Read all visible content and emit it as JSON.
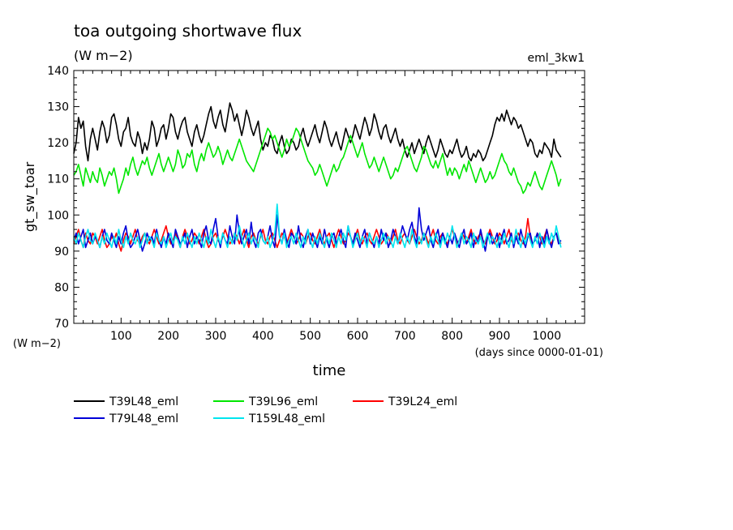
{
  "chart_data": {
    "type": "line",
    "title": "toa outgoing shortwave flux",
    "subtitle": "(W m−2)",
    "run_label": "eml_3kw1",
    "ylabel": "gt_sw_toar",
    "yunit": "(W m−2)",
    "xlabel": "time",
    "xunit": "(days since 0000-01-01)",
    "xlim": [
      0,
      1080
    ],
    "ylim": [
      70,
      140
    ],
    "xticks": [
      100,
      200,
      300,
      400,
      500,
      600,
      700,
      800,
      900,
      1000
    ],
    "yticks": [
      70,
      80,
      90,
      100,
      110,
      120,
      130,
      140
    ],
    "grid": false,
    "legend_placement": "bottom",
    "sample_step_days": 5,
    "series": [
      {
        "name": "T39L48_eml",
        "color": "#000000",
        "values": [
          117,
          120,
          127,
          124,
          126,
          119,
          115,
          121,
          124,
          121,
          118,
          123,
          126,
          124,
          120,
          122,
          127,
          128,
          125,
          121,
          119,
          123,
          124,
          127,
          122,
          120,
          119,
          123,
          121,
          117,
          120,
          118,
          121,
          126,
          124,
          119,
          121,
          124,
          125,
          121,
          124,
          128,
          127,
          123,
          121,
          124,
          126,
          127,
          123,
          121,
          119,
          123,
          125,
          122,
          120,
          122,
          125,
          128,
          130,
          126,
          124,
          127,
          129,
          125,
          123,
          127,
          131,
          129,
          126,
          128,
          125,
          122,
          125,
          129,
          127,
          124,
          122,
          124,
          126,
          121,
          118,
          120,
          119,
          122,
          121,
          118,
          117,
          120,
          122,
          119,
          117,
          118,
          121,
          120,
          118,
          119,
          122,
          124,
          121,
          119,
          121,
          123,
          125,
          122,
          120,
          123,
          126,
          124,
          121,
          119,
          121,
          123,
          120,
          118,
          121,
          124,
          122,
          120,
          122,
          125,
          123,
          121,
          124,
          127,
          125,
          122,
          124,
          128,
          126,
          123,
          121,
          124,
          125,
          122,
          120,
          122,
          124,
          121,
          119,
          121,
          118,
          116,
          118,
          120,
          117,
          119,
          121,
          119,
          117,
          120,
          122,
          120,
          118,
          116,
          118,
          121,
          119,
          117,
          116,
          118,
          117,
          119,
          121,
          118,
          116,
          117,
          119,
          116,
          115,
          117,
          116,
          118,
          117,
          115,
          116,
          118,
          120,
          122,
          125,
          127,
          126,
          128,
          126,
          129,
          127,
          125,
          127,
          126,
          124,
          125,
          123,
          121,
          119,
          121,
          120,
          117,
          116,
          118,
          117,
          120,
          119,
          118,
          116,
          121,
          118,
          117,
          116
        ]
      },
      {
        "name": "T39L96_eml",
        "color": "#00e600",
        "values": [
          111,
          112,
          114,
          111,
          108,
          113,
          111,
          109,
          112,
          110,
          109,
          113,
          111,
          108,
          110,
          112,
          111,
          113,
          110,
          106,
          108,
          110,
          113,
          111,
          114,
          116,
          113,
          111,
          113,
          115,
          114,
          116,
          113,
          111,
          113,
          115,
          117,
          114,
          112,
          114,
          116,
          114,
          112,
          114,
          118,
          116,
          113,
          114,
          117,
          116,
          118,
          114,
          112,
          115,
          117,
          115,
          118,
          120,
          118,
          116,
          117,
          119,
          117,
          114,
          116,
          118,
          116,
          115,
          117,
          119,
          121,
          119,
          117,
          115,
          114,
          113,
          112,
          114,
          116,
          118,
          120,
          122,
          124,
          123,
          121,
          122,
          120,
          118,
          116,
          118,
          121,
          119,
          120,
          122,
          124,
          123,
          121,
          119,
          117,
          115,
          114,
          113,
          111,
          112,
          114,
          112,
          110,
          108,
          110,
          112,
          114,
          112,
          113,
          115,
          116,
          118,
          120,
          122,
          120,
          118,
          116,
          118,
          120,
          117,
          115,
          113,
          114,
          116,
          114,
          112,
          114,
          116,
          114,
          112,
          110,
          111,
          113,
          112,
          114,
          116,
          118,
          119,
          117,
          115,
          113,
          112,
          114,
          116,
          119,
          118,
          116,
          114,
          113,
          115,
          113,
          115,
          117,
          114,
          111,
          113,
          111,
          113,
          112,
          110,
          112,
          114,
          112,
          115,
          113,
          111,
          109,
          111,
          113,
          111,
          109,
          110,
          112,
          110,
          111,
          113,
          115,
          117,
          115,
          114,
          112,
          111,
          113,
          111,
          109,
          108,
          106,
          107,
          109,
          108,
          110,
          112,
          110,
          108,
          107,
          109,
          111,
          113,
          115,
          113,
          111,
          108,
          110
        ]
      },
      {
        "name": "T39L24_eml",
        "color": "#ff0000",
        "values": [
          92,
          94,
          96,
          93,
          91,
          95,
          93,
          92,
          95,
          94,
          92,
          94,
          96,
          93,
          91,
          92,
          94,
          93,
          95,
          92,
          90,
          93,
          95,
          94,
          92,
          94,
          96,
          93,
          92,
          94,
          95,
          93,
          92,
          94,
          96,
          94,
          92,
          93,
          95,
          97,
          94,
          92,
          93,
          95,
          93,
          91,
          94,
          96,
          94,
          92,
          93,
          95,
          94,
          92,
          94,
          96,
          93,
          91,
          92,
          94,
          95,
          93,
          92,
          94,
          96,
          94,
          92,
          93,
          95,
          94,
          92,
          94,
          96,
          93,
          91,
          94,
          95,
          93,
          92,
          94,
          96,
          93,
          92,
          94,
          95,
          93,
          91,
          93,
          95,
          94,
          92,
          94,
          96,
          94,
          92,
          93,
          95,
          94,
          92,
          94,
          95,
          93,
          92,
          94,
          96,
          93,
          92,
          94,
          95,
          93,
          91,
          94,
          96,
          94,
          92,
          93,
          95,
          94,
          92,
          94,
          96,
          93,
          92,
          94,
          95,
          93,
          92,
          94,
          96,
          94,
          92,
          93,
          95,
          94,
          92,
          94,
          96,
          93,
          92,
          94,
          95,
          93,
          92,
          94,
          96,
          94,
          92,
          93,
          95,
          94,
          92,
          94,
          96,
          93,
          92,
          94,
          95,
          93,
          92,
          94,
          96,
          94,
          92,
          93,
          95,
          94,
          92,
          94,
          96,
          93,
          92,
          94,
          95,
          93,
          92,
          94,
          96,
          94,
          92,
          93,
          95,
          94,
          92,
          94,
          96,
          93,
          92,
          94,
          95,
          93,
          92,
          94,
          99,
          94,
          92,
          93,
          95,
          94,
          92,
          94,
          96,
          93,
          92,
          94,
          95,
          93,
          92
        ]
      },
      {
        "name": "T79L48_eml",
        "color": "#0000d8",
        "values": [
          93,
          95,
          92,
          94,
          96,
          91,
          93,
          95,
          92,
          94,
          93,
          91,
          94,
          96,
          93,
          92,
          95,
          93,
          91,
          94,
          92,
          95,
          97,
          93,
          91,
          92,
          94,
          96,
          93,
          90,
          92,
          95,
          93,
          94,
          92,
          96,
          93,
          91,
          94,
          92,
          95,
          93,
          91,
          96,
          94,
          92,
          93,
          95,
          91,
          94,
          96,
          92,
          94,
          93,
          91,
          95,
          97,
          93,
          92,
          96,
          99,
          94,
          91,
          95,
          93,
          92,
          97,
          94,
          92,
          100,
          95,
          92,
          94,
          96,
          92,
          98,
          93,
          91,
          95,
          96,
          93,
          92,
          94,
          97,
          93,
          91,
          100,
          94,
          92,
          96,
          93,
          91,
          95,
          94,
          92,
          97,
          93,
          91,
          94,
          96,
          92,
          95,
          93,
          91,
          94,
          92,
          96,
          93,
          91,
          94,
          95,
          92,
          94,
          96,
          93,
          91,
          97,
          94,
          92,
          95,
          93,
          91,
          94,
          96,
          92,
          95,
          93,
          91,
          94,
          92,
          96,
          93,
          95,
          91,
          93,
          96,
          94,
          92,
          94,
          97,
          95,
          93,
          96,
          98,
          94,
          92,
          102,
          96,
          93,
          95,
          97,
          93,
          91,
          94,
          96,
          92,
          95,
          93,
          91,
          94,
          92,
          95,
          93,
          91,
          94,
          96,
          92,
          93,
          95,
          91,
          94,
          92,
          96,
          93,
          90,
          94,
          95,
          92,
          93,
          95,
          91,
          94,
          96,
          92,
          93,
          95,
          91,
          94,
          92,
          96,
          93,
          91,
          94,
          95,
          92,
          93,
          95,
          91,
          94,
          92,
          96,
          93,
          91,
          94,
          95,
          92,
          93
        ]
      },
      {
        "name": "T159L48_eml",
        "color": "#00e5ee",
        "values": [
          94,
          92,
          95,
          93,
          91,
          94,
          96,
          93,
          92,
          95,
          93,
          91,
          94,
          92,
          95,
          93,
          91,
          94,
          92,
          96,
          93,
          91,
          94,
          92,
          95,
          93,
          92,
          94,
          91,
          93,
          95,
          92,
          94,
          93,
          91,
          95,
          93,
          92,
          94,
          91,
          93,
          95,
          92,
          94,
          93,
          91,
          94,
          92,
          95,
          93,
          91,
          94,
          92,
          95,
          93,
          91,
          94,
          92,
          96,
          93,
          91,
          94,
          92,
          95,
          93,
          91,
          94,
          92,
          95,
          93,
          97,
          94,
          91,
          93,
          95,
          92,
          94,
          93,
          91,
          95,
          93,
          92,
          94,
          91,
          93,
          95,
          103,
          94,
          92,
          95,
          91,
          93,
          94,
          92,
          95,
          93,
          91,
          94,
          92,
          96,
          93,
          91,
          94,
          92,
          95,
          93,
          91,
          94,
          92,
          95,
          93,
          91,
          94,
          92,
          95,
          93,
          97,
          94,
          91,
          93,
          95,
          92,
          94,
          93,
          91,
          95,
          93,
          92,
          94,
          91,
          93,
          95,
          92,
          94,
          93,
          91,
          94,
          92,
          95,
          93,
          91,
          94,
          92,
          96,
          93,
          91,
          94,
          92,
          95,
          93,
          91,
          94,
          92,
          95,
          93,
          91,
          94,
          92,
          95,
          93,
          97,
          94,
          91,
          93,
          95,
          92,
          94,
          93,
          91,
          95,
          93,
          92,
          94,
          91,
          93,
          95,
          92,
          94,
          93,
          91,
          94,
          92,
          95,
          93,
          91,
          94,
          92,
          96,
          93,
          91,
          94,
          92,
          95,
          93,
          91,
          94,
          92,
          95,
          93,
          91,
          94,
          92,
          95,
          93,
          97,
          94,
          91
        ]
      }
    ]
  }
}
